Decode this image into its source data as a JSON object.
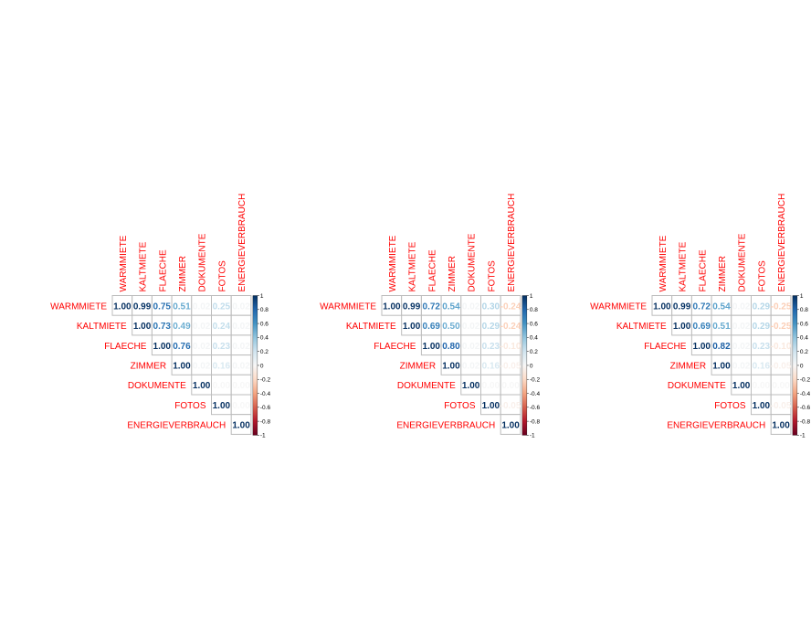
{
  "chart_data": [
    {
      "type": "heatmap",
      "variables": [
        "WARMMIETE",
        "KALTMIETE",
        "FLAECHE",
        "ZIMMER",
        "DOKUMENTE",
        "FOTOS",
        "ENERGIEVERBRAUCH"
      ],
      "matrix": [
        [
          1.0,
          0.99,
          0.75,
          0.51,
          0.02,
          0.25,
          0.02
        ],
        [
          null,
          1.0,
          0.73,
          0.49,
          0.02,
          0.24,
          0.02
        ],
        [
          null,
          null,
          1.0,
          0.76,
          0.02,
          0.23,
          0.02
        ],
        [
          null,
          null,
          null,
          1.0,
          0.02,
          0.16,
          0.02
        ],
        [
          null,
          null,
          null,
          null,
          1.0,
          0.0,
          0.0
        ],
        [
          null,
          null,
          null,
          null,
          null,
          1.0,
          0.0
        ],
        [
          null,
          null,
          null,
          null,
          null,
          null,
          1.0
        ]
      ],
      "colorbar_ticks": [
        "1",
        "0.8",
        "0.6",
        "0.4",
        "0.2",
        "0",
        "-0.2",
        "-0.4",
        "-0.6",
        "-0.8",
        "-1"
      ],
      "value_range": [
        -1,
        1
      ]
    },
    {
      "type": "heatmap",
      "variables": [
        "WARMMIETE",
        "KALTMIETE",
        "FLAECHE",
        "ZIMMER",
        "DOKUMENTE",
        "FOTOS",
        "ENERGIEVERBRAUCH"
      ],
      "matrix": [
        [
          1.0,
          0.99,
          0.72,
          0.54,
          0.02,
          0.3,
          -0.24
        ],
        [
          null,
          1.0,
          0.69,
          0.5,
          0.02,
          0.29,
          -0.24
        ],
        [
          null,
          null,
          1.0,
          0.8,
          0.02,
          0.23,
          -0.1
        ],
        [
          null,
          null,
          null,
          1.0,
          0.02,
          0.16,
          -0.05
        ],
        [
          null,
          null,
          null,
          null,
          1.0,
          0.0,
          0.0
        ],
        [
          null,
          null,
          null,
          null,
          null,
          1.0,
          -0.05
        ],
        [
          null,
          null,
          null,
          null,
          null,
          null,
          1.0
        ]
      ],
      "colorbar_ticks": [
        "1",
        "0.8",
        "0.6",
        "0.4",
        "0.2",
        "0",
        "-0.2",
        "-0.4",
        "-0.6",
        "-0.8",
        "-1"
      ],
      "value_range": [
        -1,
        1
      ]
    },
    {
      "type": "heatmap",
      "variables": [
        "WARMMIETE",
        "KALTMIETE",
        "FLAECHE",
        "ZIMMER",
        "DOKUMENTE",
        "FOTOS",
        "ENERGIEVERBRAUCH"
      ],
      "matrix": [
        [
          1.0,
          0.99,
          0.72,
          0.54,
          0.02,
          0.29,
          -0.25
        ],
        [
          null,
          1.0,
          0.69,
          0.51,
          0.02,
          0.29,
          -0.25
        ],
        [
          null,
          null,
          1.0,
          0.82,
          0.02,
          0.23,
          -0.1
        ],
        [
          null,
          null,
          null,
          1.0,
          0.02,
          0.16,
          -0.05
        ],
        [
          null,
          null,
          null,
          null,
          1.0,
          0.0,
          0.0
        ],
        [
          null,
          null,
          null,
          null,
          null,
          1.0,
          -0.05
        ],
        [
          null,
          null,
          null,
          null,
          null,
          null,
          1.0
        ]
      ],
      "colorbar_ticks": [
        "1",
        "0.8",
        "0.6",
        "0.4",
        "0.2",
        "0",
        "-0.2",
        "-0.4",
        "-0.6",
        "-0.8",
        "-1"
      ],
      "value_range": [
        -1,
        1
      ]
    }
  ]
}
